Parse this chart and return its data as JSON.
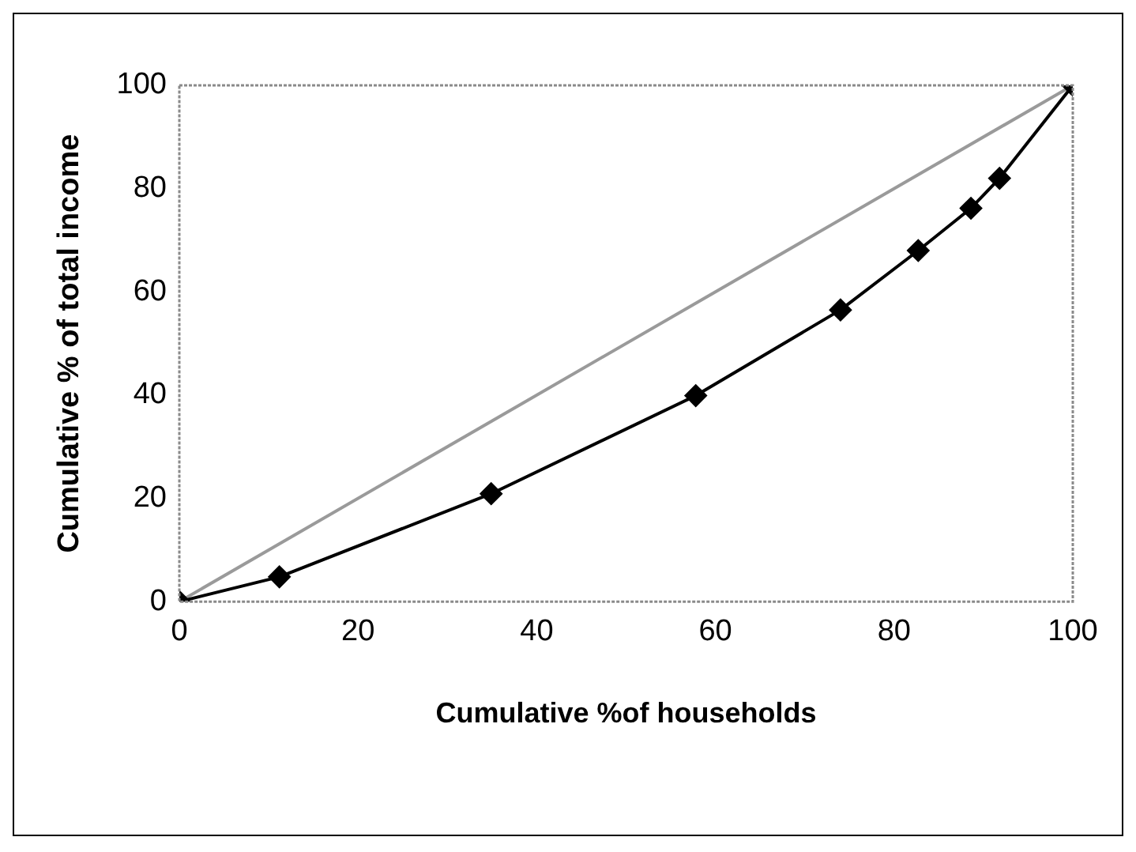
{
  "chart_data": {
    "type": "line",
    "xlabel": "Cumulative %of households",
    "ylabel": "Cumulative % of total income",
    "xlim": [
      0,
      100
    ],
    "ylim": [
      0,
      100
    ],
    "xticks": [
      0,
      20,
      40,
      60,
      80,
      100
    ],
    "yticks": [
      0,
      20,
      40,
      60,
      80,
      100
    ],
    "grid": false,
    "legend": false,
    "marker": "diamond",
    "series": [
      {
        "color": "#000000",
        "x": [
          0,
          11.2,
          34.9,
          57.8,
          74,
          82.7,
          88.6,
          91.8,
          100
        ],
        "values": [
          0,
          4.8,
          20.9,
          39.9,
          56.5,
          68,
          76.2,
          82,
          100
        ]
      },
      {
        "color": "#9a9a9a",
        "marker": "none",
        "x": [
          0,
          100
        ],
        "values": [
          0,
          100
        ]
      }
    ]
  }
}
